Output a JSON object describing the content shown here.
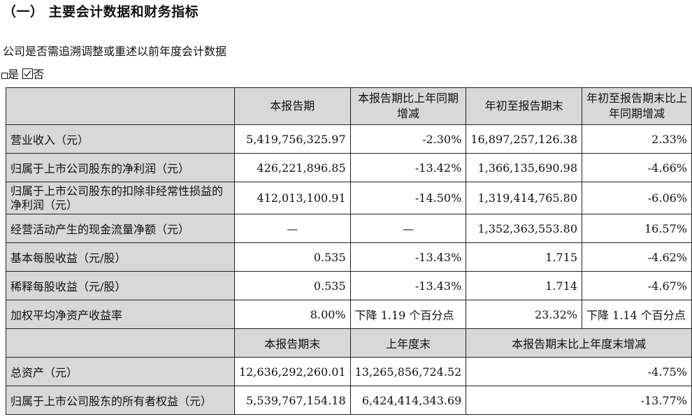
{
  "heading": "（一） 主要会计数据和财务指标",
  "question": "公司是否需追溯调整或重述以前年度会计数据",
  "options": {
    "yes_label": "是",
    "no_label": "否",
    "no_checked": true
  },
  "table1": {
    "headers": [
      "本报告期",
      "本报告期比上年同期增减",
      "年初至报告期末",
      "年初至报告期末比上年同期增减"
    ],
    "rows": [
      {
        "label": "营业收入（元）",
        "cells": [
          "5,419,756,325.97",
          "-2.30%",
          "16,897,257,126.38",
          "2.33%"
        ]
      },
      {
        "label": "归属于上市公司股东的净利润（元）",
        "cells": [
          "426,221,896.85",
          "-13.42%",
          "1,366,135,690.98",
          "-4.66%"
        ]
      },
      {
        "label": "归属于上市公司股东的扣除非经常性损益的净利润（元）",
        "cells": [
          "412,013,100.91",
          "-14.50%",
          "1,319,414,765.80",
          "-6.06%"
        ]
      },
      {
        "label": "经营活动产生的现金流量净额（元）",
        "cells": [
          "—",
          "—",
          "1,352,363,553.80",
          "16.57%"
        ]
      },
      {
        "label": "基本每股收益（元/股）",
        "cells": [
          "0.535",
          "-13.43%",
          "1.715",
          "-4.62%"
        ]
      },
      {
        "label": "稀释每股收益（元/股）",
        "cells": [
          "0.535",
          "-13.43%",
          "1.714",
          "-4.67%"
        ]
      },
      {
        "label": "加权平均净资产收益率",
        "cells": [
          "8.00%",
          "下降 1.19 个百分点",
          "23.32%",
          "下降 1.14 个百分点"
        ]
      }
    ]
  },
  "table2": {
    "headers": [
      "本报告期末",
      "上年度末",
      "本报告期末比上年度末增减"
    ],
    "rows": [
      {
        "label": "总资产（元）",
        "cells": [
          "12,636,292,260.01",
          "13,265,856,724.52",
          "-4.75%"
        ]
      },
      {
        "label": "归属于上市公司股东的所有者权益（元）",
        "cells": [
          "5,539,767,154.18",
          "6,424,414,343.69",
          "-13.77%"
        ]
      }
    ]
  }
}
